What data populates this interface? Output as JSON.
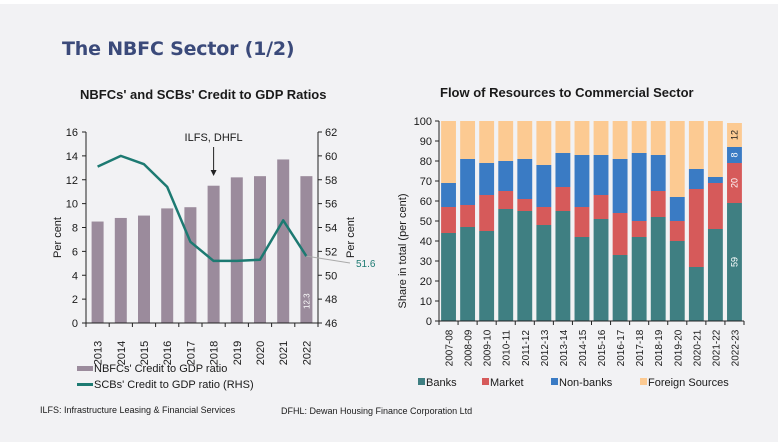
{
  "page": {
    "title": "The NBFC Sector (1/2)",
    "footnotes": [
      "ILFS: Infrastructure Leasing & Financial Services",
      "DFHL: Dewan Housing Finance Corporation Ltd"
    ]
  },
  "colors": {
    "nbfc_bar": "#9b8b9c",
    "scb_line": "#1d7a72",
    "banks": "#3f7f82",
    "market": "#d65a5a",
    "nonbanks": "#3a7bc4",
    "foreign": "#fcca92",
    "background": "#f2f2f4"
  },
  "chart_data": [
    {
      "type": "bar",
      "title": "NBFCs' and SCBs' Credit to GDP Ratios",
      "categories": [
        "2013",
        "2014",
        "2015",
        "2016",
        "2017",
        "2018",
        "2019",
        "2020",
        "2021",
        "2022"
      ],
      "series": [
        {
          "name": "NBFCs' Credit to GDP ratio",
          "type": "bar",
          "axis": "left",
          "values": [
            8.5,
            8.8,
            9.0,
            9.6,
            9.7,
            11.5,
            12.2,
            12.3,
            13.7,
            12.3
          ]
        },
        {
          "name": "SCBs' Credit to GDP ratio (RHS)",
          "type": "line",
          "axis": "right",
          "values": [
            59.1,
            60.0,
            59.3,
            57.4,
            52.8,
            51.2,
            51.2,
            51.3,
            54.6,
            51.6
          ]
        }
      ],
      "ylabel": "Per cent",
      "ylabel_right": "Per cent",
      "ylim": [
        0,
        16
      ],
      "yticks": [
        0,
        2,
        4,
        6,
        8,
        10,
        12,
        14,
        16
      ],
      "ylim_right": [
        46,
        62
      ],
      "yticks_right": [
        46,
        48,
        50,
        52,
        54,
        56,
        58,
        60,
        62
      ],
      "annotations": [
        {
          "text": "ILFS, DHFL",
          "at_category": "2018",
          "kind": "arrow"
        },
        {
          "text": "12.3",
          "at_category": "2022",
          "kind": "bar-label"
        },
        {
          "text": "51.6",
          "at_category": "2022",
          "kind": "line-callout"
        }
      ],
      "legend": {
        "position": "bottom",
        "entries": [
          "NBFCs' Credit to GDP ratio",
          "SCBs' Credit to GDP ratio (RHS)"
        ]
      },
      "grid": false
    },
    {
      "type": "bar",
      "stacked": true,
      "title": "Flow of Resources to Commercial Sector",
      "categories": [
        "2007-08",
        "2008-09",
        "2009-10",
        "2010-11",
        "2011-12",
        "2012-13",
        "2013-14",
        "2014-15",
        "2015-16",
        "2016-17",
        "2017-18",
        "2018-19",
        "2019-20",
        "2020-21",
        "2021-22",
        "2022-23"
      ],
      "series": [
        {
          "name": "Banks",
          "values": [
            44,
            47,
            45,
            56,
            55,
            48,
            55,
            42,
            51,
            33,
            42,
            52,
            40,
            27,
            46,
            59
          ]
        },
        {
          "name": "Market",
          "values": [
            13,
            11,
            18,
            9,
            6,
            9,
            12,
            15,
            12,
            21,
            8,
            13,
            10,
            39,
            23,
            20
          ]
        },
        {
          "name": "Non-banks",
          "values": [
            12,
            23,
            16,
            15,
            20,
            21,
            17,
            26,
            20,
            27,
            34,
            18,
            12,
            10,
            3,
            8
          ]
        },
        {
          "name": "Foreign Sources",
          "values": [
            31,
            19,
            21,
            20,
            19,
            22,
            16,
            17,
            17,
            19,
            16,
            17,
            38,
            24,
            28,
            12
          ]
        }
      ],
      "data_labels": {
        "2022-23": {
          "Banks": "59",
          "Market": "20",
          "Non-banks": "8",
          "Foreign Sources": "12"
        }
      },
      "ylabel": "Share in total (per cent)",
      "xlabel": "",
      "ylim": [
        0,
        100
      ],
      "yticks": [
        0,
        10,
        20,
        30,
        40,
        50,
        60,
        70,
        80,
        90,
        100
      ],
      "legend": {
        "position": "bottom",
        "entries": [
          "Banks",
          "Market",
          "Non-banks",
          "Foreign Sources"
        ]
      },
      "grid": false
    }
  ]
}
